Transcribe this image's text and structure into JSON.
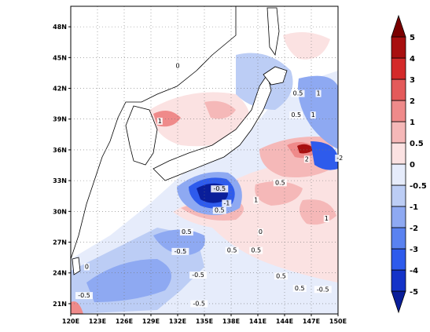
{
  "chart_data": {
    "type": "contour-map",
    "lon_ticks": [
      "120E",
      "123E",
      "126E",
      "129E",
      "132E",
      "135E",
      "138E",
      "141E",
      "144E",
      "147E",
      "150E"
    ],
    "lat_ticks": [
      "21N",
      "24N",
      "27N",
      "30N",
      "33N",
      "36N",
      "39N",
      "42N",
      "45N",
      "48N"
    ],
    "xlim": [
      120,
      150
    ],
    "ylim": [
      20,
      50
    ],
    "colorbar": {
      "levels": [
        "-5",
        "-4",
        "-3",
        "-2",
        "-1",
        "-0.5",
        "0",
        "0.5",
        "1",
        "2",
        "3",
        "4",
        "5"
      ],
      "colors": [
        "#0a1e9a",
        "#1433c8",
        "#2e5bec",
        "#5a82f0",
        "#8ea9f2",
        "#bccdf5",
        "#e6ecfb",
        "#fbe2e2",
        "#f5b8b8",
        "#ef8a8a",
        "#e45a5a",
        "#d42a2a",
        "#a80f0f",
        "#7a0000"
      ]
    },
    "contour_labels": [
      {
        "text": "0",
        "lon": 132,
        "lat": 44
      },
      {
        "text": "1",
        "lon": 130,
        "lat": 38.6
      },
      {
        "text": "0.5",
        "lon": 145.5,
        "lat": 41.3
      },
      {
        "text": "1",
        "lon": 147.8,
        "lat": 41.3
      },
      {
        "text": "0.5",
        "lon": 145.3,
        "lat": 39.2
      },
      {
        "text": "1",
        "lon": 147.2,
        "lat": 39.2
      },
      {
        "text": "2",
        "lon": 146.5,
        "lat": 34.9
      },
      {
        "text": "-2",
        "lon": 150.2,
        "lat": 35.0
      },
      {
        "text": "0.5",
        "lon": 143.5,
        "lat": 32.6
      },
      {
        "text": "1",
        "lon": 140.8,
        "lat": 30.9
      },
      {
        "text": "1",
        "lon": 148.7,
        "lat": 29.1
      },
      {
        "text": "-0.5",
        "lon": 136.7,
        "lat": 32.0
      },
      {
        "text": "-1",
        "lon": 137.5,
        "lat": 30.6
      },
      {
        "text": "0.5",
        "lon": 136.7,
        "lat": 29.9
      },
      {
        "text": "0.5",
        "lon": 133,
        "lat": 27.8
      },
      {
        "text": "0",
        "lon": 141.3,
        "lat": 27.8
      },
      {
        "text": "-0.5",
        "lon": 132.3,
        "lat": 25.9
      },
      {
        "text": "0.5",
        "lon": 138.1,
        "lat": 26.0
      },
      {
        "text": "0.5",
        "lon": 140.8,
        "lat": 26.0
      },
      {
        "text": "0",
        "lon": 121.8,
        "lat": 24.4
      },
      {
        "text": "-0.5",
        "lon": 134.3,
        "lat": 23.6
      },
      {
        "text": "0.5",
        "lon": 143.6,
        "lat": 23.5
      },
      {
        "text": "0.5",
        "lon": 145.7,
        "lat": 22.3
      },
      {
        "text": "-0.5",
        "lon": 148.3,
        "lat": 22.2
      },
      {
        "text": "-0.5",
        "lon": 121.5,
        "lat": 21.6
      },
      {
        "text": "-0.5",
        "lon": 134.4,
        "lat": 20.8
      }
    ]
  }
}
